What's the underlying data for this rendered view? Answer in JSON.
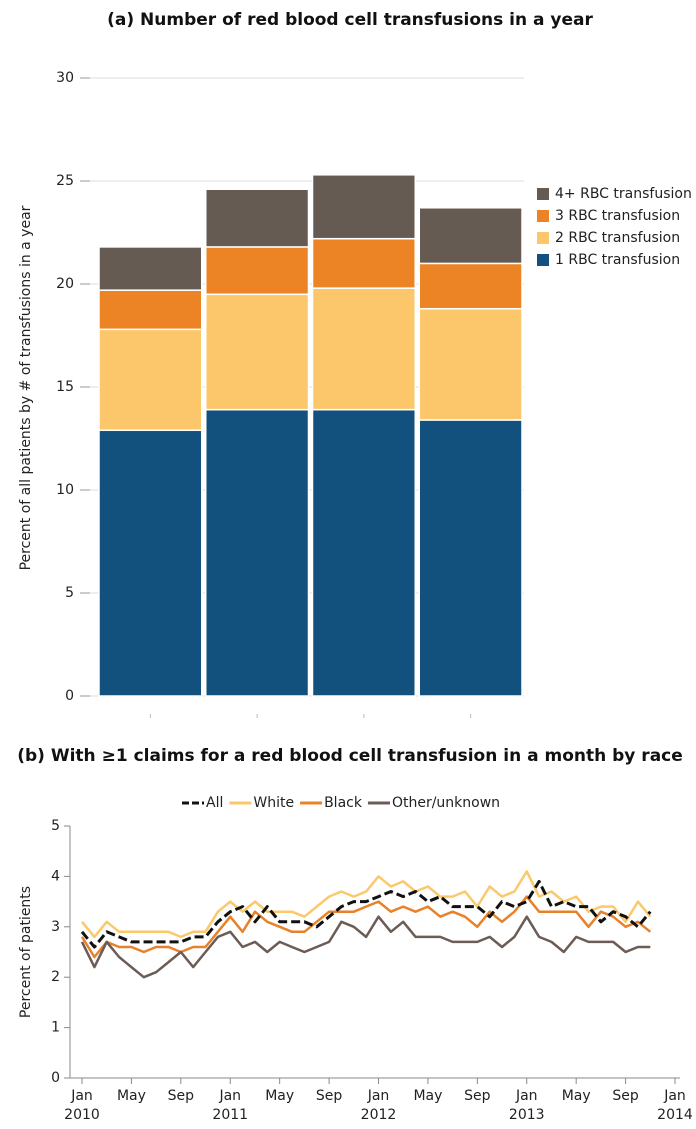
{
  "chart_data": [
    {
      "type": "bar",
      "stacked": true,
      "title": "(a) Number of red blood cell transfusions in a year",
      "y_label": "Percent of all patients by # of transfusions in a year",
      "categories": [
        null,
        null,
        null,
        null
      ],
      "series": [
        {
          "name": "1 RBC transfusion",
          "color": "#12507d",
          "values": [
            12.9,
            13.9,
            13.9,
            13.4
          ]
        },
        {
          "name": "2 RBC transfusion",
          "color": "#fcc76b",
          "values": [
            4.9,
            5.6,
            5.9,
            5.4
          ]
        },
        {
          "name": "3 RBC transfusion",
          "color": "#ec8426",
          "values": [
            1.9,
            2.3,
            2.4,
            2.2
          ]
        },
        {
          "name": "4+ RBC transfusion",
          "color": "#665b53",
          "values": [
            2.1,
            2.8,
            3.1,
            2.7
          ]
        }
      ],
      "ylim": [
        0,
        30
      ],
      "yticks": [
        0,
        5,
        10,
        15,
        20,
        25,
        30
      ],
      "grid": true,
      "legend": "right"
    },
    {
      "type": "line",
      "title": "(b) With ≥1 claims for a red blood cell transfusion in a month by race",
      "y_label": "Percent of patients",
      "x": [
        "2010-01",
        "2010-02",
        "2010-03",
        "2010-04",
        "2010-05",
        "2010-06",
        "2010-07",
        "2010-08",
        "2010-09",
        "2010-10",
        "2010-11",
        "2010-12",
        "2011-01",
        "2011-02",
        "2011-03",
        "2011-04",
        "2011-05",
        "2011-06",
        "2011-07",
        "2011-08",
        "2011-09",
        "2011-10",
        "2011-11",
        "2011-12",
        "2012-01",
        "2012-02",
        "2012-03",
        "2012-04",
        "2012-05",
        "2012-06",
        "2012-07",
        "2012-08",
        "2012-09",
        "2012-10",
        "2012-11",
        "2012-12",
        "2013-01",
        "2013-02",
        "2013-03",
        "2013-04",
        "2013-05",
        "2013-06",
        "2013-07",
        "2013-08",
        "2013-09",
        "2013-10",
        "2013-11"
      ],
      "series": [
        {
          "name": "All",
          "color": "#111111",
          "dashed": true,
          "values": [
            2.9,
            2.6,
            2.9,
            2.8,
            2.7,
            2.7,
            2.7,
            2.7,
            2.7,
            2.8,
            2.8,
            3.1,
            3.3,
            3.4,
            3.1,
            3.4,
            3.1,
            3.1,
            3.1,
            3.0,
            3.2,
            3.4,
            3.5,
            3.5,
            3.6,
            3.7,
            3.6,
            3.7,
            3.5,
            3.6,
            3.4,
            3.4,
            3.4,
            3.2,
            3.5,
            3.4,
            3.5,
            3.9,
            3.4,
            3.5,
            3.4,
            3.4,
            3.1,
            3.3,
            3.2,
            3.0,
            3.3
          ]
        },
        {
          "name": "White",
          "color": "#fbc96b",
          "values": [
            3.1,
            2.8,
            3.1,
            2.9,
            2.9,
            2.9,
            2.9,
            2.9,
            2.8,
            2.9,
            2.9,
            3.3,
            3.5,
            3.3,
            3.5,
            3.3,
            3.3,
            3.3,
            3.2,
            3.4,
            3.6,
            3.7,
            3.6,
            3.7,
            4.0,
            3.8,
            3.9,
            3.7,
            3.8,
            3.6,
            3.6,
            3.7,
            3.4,
            3.8,
            3.6,
            3.7,
            4.1,
            3.6,
            3.7,
            3.5,
            3.6,
            3.3,
            3.4,
            3.4,
            3.1,
            3.5,
            3.2
          ]
        },
        {
          "name": "Black",
          "color": "#e8822a",
          "values": [
            2.8,
            2.4,
            2.7,
            2.6,
            2.6,
            2.5,
            2.6,
            2.6,
            2.5,
            2.6,
            2.6,
            2.9,
            3.2,
            2.9,
            3.3,
            3.1,
            3.0,
            2.9,
            2.9,
            3.1,
            3.3,
            3.3,
            3.3,
            3.4,
            3.5,
            3.3,
            3.4,
            3.3,
            3.4,
            3.2,
            3.3,
            3.2,
            3.0,
            3.3,
            3.1,
            3.3,
            3.6,
            3.3,
            3.3,
            3.3,
            3.3,
            3.0,
            3.3,
            3.2,
            3.0,
            3.1,
            2.9
          ]
        },
        {
          "name": "Other/unknown",
          "color": "#6b5d55",
          "values": [
            2.7,
            2.2,
            2.7,
            2.4,
            2.2,
            2.0,
            2.1,
            2.3,
            2.5,
            2.2,
            2.5,
            2.8,
            2.9,
            2.6,
            2.7,
            2.5,
            2.7,
            2.6,
            2.5,
            2.6,
            2.7,
            3.1,
            3.0,
            2.8,
            3.2,
            2.9,
            3.1,
            2.8,
            2.8,
            2.8,
            2.7,
            2.7,
            2.7,
            2.8,
            2.6,
            2.8,
            3.2,
            2.8,
            2.7,
            2.5,
            2.8,
            2.7,
            2.7,
            2.7,
            2.5,
            2.6,
            2.6
          ]
        }
      ],
      "xlim": [
        "2010-01",
        "2014-01"
      ],
      "xticks": [
        {
          "value": "2010-01",
          "label": "Jan",
          "year": "2010"
        },
        {
          "value": "2010-05",
          "label": "May"
        },
        {
          "value": "2010-09",
          "label": "Sep"
        },
        {
          "value": "2011-01",
          "label": "Jan",
          "year": "2011"
        },
        {
          "value": "2011-05",
          "label": "May"
        },
        {
          "value": "2011-09",
          "label": "Sep"
        },
        {
          "value": "2012-01",
          "label": "Jan",
          "year": "2012"
        },
        {
          "value": "2012-05",
          "label": "May"
        },
        {
          "value": "2012-09",
          "label": "Sep"
        },
        {
          "value": "2013-01",
          "label": "Jan",
          "year": "2013"
        },
        {
          "value": "2013-05",
          "label": "May"
        },
        {
          "value": "2013-09",
          "label": "Sep"
        },
        {
          "value": "2014-01",
          "label": "Jan",
          "year": "2014"
        }
      ],
      "ylim": [
        0,
        5
      ],
      "yticks": [
        0,
        1,
        2,
        3,
        4,
        5
      ],
      "grid": false,
      "legend": "top"
    }
  ]
}
